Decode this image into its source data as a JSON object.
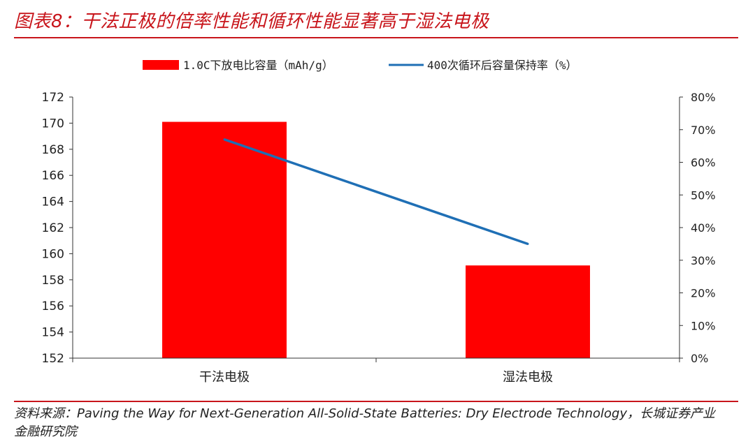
{
  "header": {
    "title": "图表8：干法正极的倍率性能和循环性能显著高于湿法电极"
  },
  "footer": {
    "source": "资料来源：Paving the Way for Next-Generation All-Solid-State Batteries: Dry Electrode Technology，长城证券产业\n金融研究院"
  },
  "colors": {
    "accent": "#c8151b",
    "bar": "#ff0000",
    "line": "#1f6fb5"
  },
  "chart_data": {
    "type": "bar",
    "categories": [
      "干法电极",
      "湿法电极"
    ],
    "series": [
      {
        "name": "1.0C下放电比容量（mAh/g）",
        "type": "bar",
        "axis": "left",
        "values": [
          170.1,
          159.1
        ]
      },
      {
        "name": "400次循环后容量保持率（%）",
        "type": "line",
        "axis": "right",
        "values": [
          67,
          35
        ]
      }
    ],
    "ylim": [
      152,
      172
    ],
    "yticks": [
      "152",
      "154",
      "156",
      "158",
      "160",
      "162",
      "164",
      "166",
      "168",
      "170",
      "172"
    ],
    "y2lim": [
      0,
      80
    ],
    "y2ticks": [
      "0%",
      "10%",
      "20%",
      "30%",
      "40%",
      "50%",
      "60%",
      "70%",
      "80%"
    ],
    "legend": "top-center",
    "grid": false
  }
}
